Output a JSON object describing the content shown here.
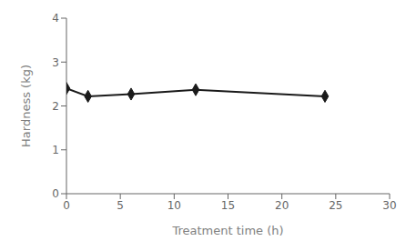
{
  "chart_data": {
    "type": "line",
    "x": [
      0,
      2,
      6,
      12,
      24
    ],
    "values": [
      2.4,
      2.22,
      2.27,
      2.37,
      2.22
    ],
    "color": "#1a1a1a",
    "marker": "diamond",
    "xlabel": "Treatment time (h)",
    "ylabel": "Hardness (kg)",
    "xlim": [
      0,
      30
    ],
    "ylim": [
      0,
      4
    ],
    "xticks": [
      0,
      5,
      10,
      15,
      20,
      25,
      30
    ],
    "yticks": [
      0,
      1,
      2,
      3,
      4
    ],
    "grid": false
  }
}
